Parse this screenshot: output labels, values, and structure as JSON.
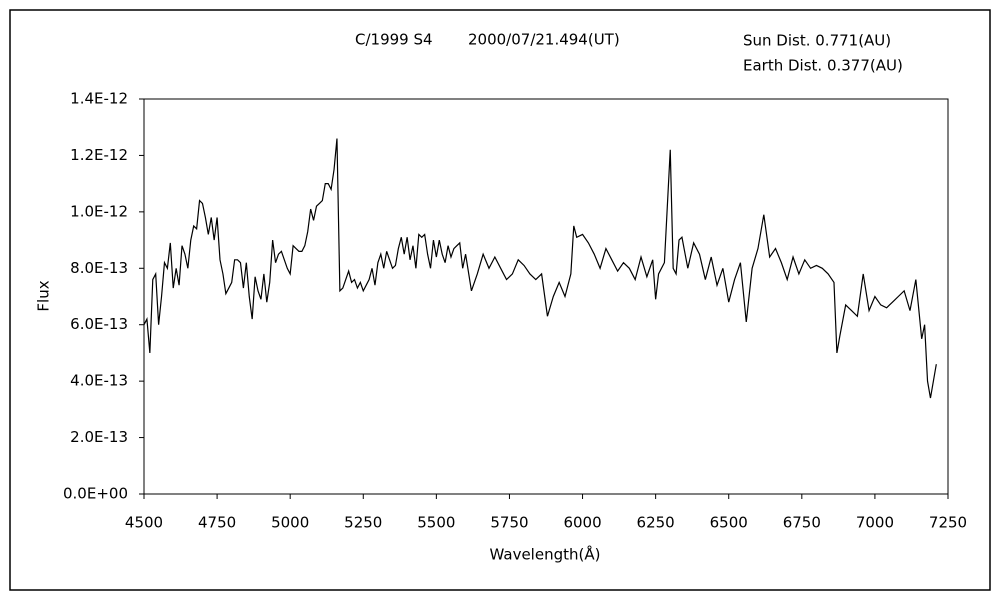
{
  "chart_data": {
    "type": "line",
    "title": "C/1999 S4",
    "subtitle": "2000/07/21.494(UT)",
    "annotations": [
      "Sun Dist. 0.771(AU)",
      "Earth Dist. 0.377(AU)"
    ],
    "xlabel": "Wavelength(Å)",
    "ylabel": "Flux",
    "xlim": [
      4500,
      7250
    ],
    "xticks": [
      4500,
      4750,
      5000,
      5250,
      5500,
      5750,
      6000,
      6250,
      6500,
      6750,
      7000,
      7250
    ],
    "ylim": [
      0,
      1.4e-12
    ],
    "yticks": [
      {
        "value": 0,
        "label": "0.0E+00"
      },
      {
        "value": 2e-13,
        "label": "2.0E-13"
      },
      {
        "value": 4e-13,
        "label": "4.0E-13"
      },
      {
        "value": 6e-13,
        "label": "6.0E-13"
      },
      {
        "value": 8e-13,
        "label": "8.0E-13"
      },
      {
        "value": 1e-12,
        "label": "1.0E-12"
      },
      {
        "value": 1.2e-12,
        "label": "1.2E-12"
      },
      {
        "value": 1.4e-12,
        "label": "1.4E-12"
      }
    ],
    "grid": false,
    "color": "#000000",
    "x": [
      4500,
      4510,
      4520,
      4530,
      4540,
      4550,
      4560,
      4570,
      4580,
      4590,
      4600,
      4610,
      4620,
      4630,
      4640,
      4650,
      4660,
      4670,
      4680,
      4690,
      4700,
      4710,
      4720,
      4730,
      4740,
      4750,
      4760,
      4770,
      4780,
      4790,
      4800,
      4810,
      4820,
      4830,
      4840,
      4850,
      4860,
      4870,
      4880,
      4890,
      4900,
      4910,
      4920,
      4930,
      4940,
      4950,
      4960,
      4970,
      4980,
      4990,
      5000,
      5010,
      5020,
      5030,
      5040,
      5050,
      5060,
      5070,
      5080,
      5090,
      5100,
      5110,
      5120,
      5130,
      5140,
      5150,
      5160,
      5170,
      5180,
      5190,
      5200,
      5210,
      5220,
      5230,
      5240,
      5250,
      5260,
      5270,
      5280,
      5290,
      5300,
      5310,
      5320,
      5330,
      5340,
      5350,
      5360,
      5370,
      5380,
      5390,
      5400,
      5410,
      5420,
      5430,
      5440,
      5450,
      5460,
      5470,
      5480,
      5490,
      5500,
      5510,
      5520,
      5530,
      5540,
      5550,
      5560,
      5570,
      5580,
      5590,
      5600,
      5620,
      5640,
      5660,
      5680,
      5700,
      5720,
      5740,
      5760,
      5780,
      5800,
      5820,
      5840,
      5860,
      5880,
      5900,
      5920,
      5940,
      5960,
      5970,
      5980,
      6000,
      6020,
      6040,
      6060,
      6080,
      6100,
      6120,
      6140,
      6160,
      6180,
      6200,
      6220,
      6240,
      6250,
      6260,
      6280,
      6300,
      6310,
      6320,
      6330,
      6340,
      6360,
      6380,
      6400,
      6420,
      6440,
      6460,
      6480,
      6500,
      6520,
      6540,
      6560,
      6580,
      6600,
      6620,
      6640,
      6660,
      6680,
      6700,
      6720,
      6740,
      6760,
      6780,
      6800,
      6820,
      6840,
      6860,
      6870,
      6880,
      6900,
      6920,
      6940,
      6960,
      6980,
      7000,
      7020,
      7040,
      7060,
      7080,
      7100,
      7120,
      7140,
      7160,
      7170,
      7180,
      7190,
      7210
    ],
    "values": [
      6e-13,
      6.2e-13,
      5e-13,
      7.6e-13,
      7.8e-13,
      6e-13,
      7e-13,
      8.2e-13,
      8e-13,
      8.9e-13,
      7.3e-13,
      8e-13,
      7.4e-13,
      8.8e-13,
      8.5e-13,
      8e-13,
      9e-13,
      9.5e-13,
      9.4e-13,
      1.04e-12,
      1.03e-12,
      9.8e-13,
      9.2e-13,
      9.8e-13,
      9e-13,
      9.8e-13,
      8.3e-13,
      7.8e-13,
      7.1e-13,
      7.3e-13,
      7.5e-13,
      8.3e-13,
      8.3e-13,
      8.2e-13,
      7.3e-13,
      8.2e-13,
      7e-13,
      6.2e-13,
      7.7e-13,
      7.2e-13,
      6.9e-13,
      7.8e-13,
      6.8e-13,
      7.5e-13,
      9e-13,
      8.2e-13,
      8.5e-13,
      8.6e-13,
      8.3e-13,
      8e-13,
      7.8e-13,
      8.8e-13,
      8.7e-13,
      8.6e-13,
      8.6e-13,
      8.8e-13,
      9.3e-13,
      1.01e-12,
      9.7e-13,
      1.02e-12,
      1.03e-12,
      1.04e-12,
      1.1e-12,
      1.1e-12,
      1.08e-12,
      1.15e-12,
      1.26e-12,
      7.2e-13,
      7.3e-13,
      7.6e-13,
      7.9e-13,
      7.5e-13,
      7.6e-13,
      7.3e-13,
      7.5e-13,
      7.2e-13,
      7.4e-13,
      7.6e-13,
      8e-13,
      7.4e-13,
      8.2e-13,
      8.5e-13,
      8e-13,
      8.6e-13,
      8.3e-13,
      8e-13,
      8.1e-13,
      8.7e-13,
      9.1e-13,
      8.5e-13,
      9.1e-13,
      8.3e-13,
      8.8e-13,
      8e-13,
      9.2e-13,
      9.1e-13,
      9.2e-13,
      8.5e-13,
      8e-13,
      9e-13,
      8.4e-13,
      9e-13,
      8.5e-13,
      8.2e-13,
      8.8e-13,
      8.4e-13,
      8.7e-13,
      8.8e-13,
      8.9e-13,
      8e-13,
      8.5e-13,
      7.2e-13,
      7.8e-13,
      8.5e-13,
      8e-13,
      8.4e-13,
      8e-13,
      7.6e-13,
      7.8e-13,
      8.3e-13,
      8.1e-13,
      7.8e-13,
      7.6e-13,
      7.8e-13,
      6.3e-13,
      7e-13,
      7.5e-13,
      7e-13,
      7.8e-13,
      9.5e-13,
      9.1e-13,
      9.2e-13,
      8.9e-13,
      8.5e-13,
      8e-13,
      8.7e-13,
      8.3e-13,
      7.9e-13,
      8.2e-13,
      8e-13,
      7.6e-13,
      8.4e-13,
      7.7e-13,
      8.3e-13,
      6.9e-13,
      7.8e-13,
      8.2e-13,
      1.22e-12,
      8e-13,
      7.8e-13,
      9e-13,
      9.1e-13,
      8e-13,
      8.9e-13,
      8.5e-13,
      7.6e-13,
      8.4e-13,
      7.4e-13,
      8e-13,
      6.8e-13,
      7.6e-13,
      8.2e-13,
      6.1e-13,
      8e-13,
      8.7e-13,
      9.9e-13,
      8.4e-13,
      8.7e-13,
      8.2e-13,
      7.6e-13,
      8.4e-13,
      7.8e-13,
      8.3e-13,
      8e-13,
      8.1e-13,
      8e-13,
      7.8e-13,
      7.5e-13,
      5e-13,
      5.6e-13,
      6.7e-13,
      6.5e-13,
      6.3e-13,
      7.8e-13,
      6.5e-13,
      7e-13,
      6.7e-13,
      6.6e-13,
      6.8e-13,
      7e-13,
      7.2e-13,
      6.5e-13,
      7.6e-13,
      5.5e-13,
      6e-13,
      4e-13,
      3.4e-13,
      4.6e-13
    ]
  }
}
